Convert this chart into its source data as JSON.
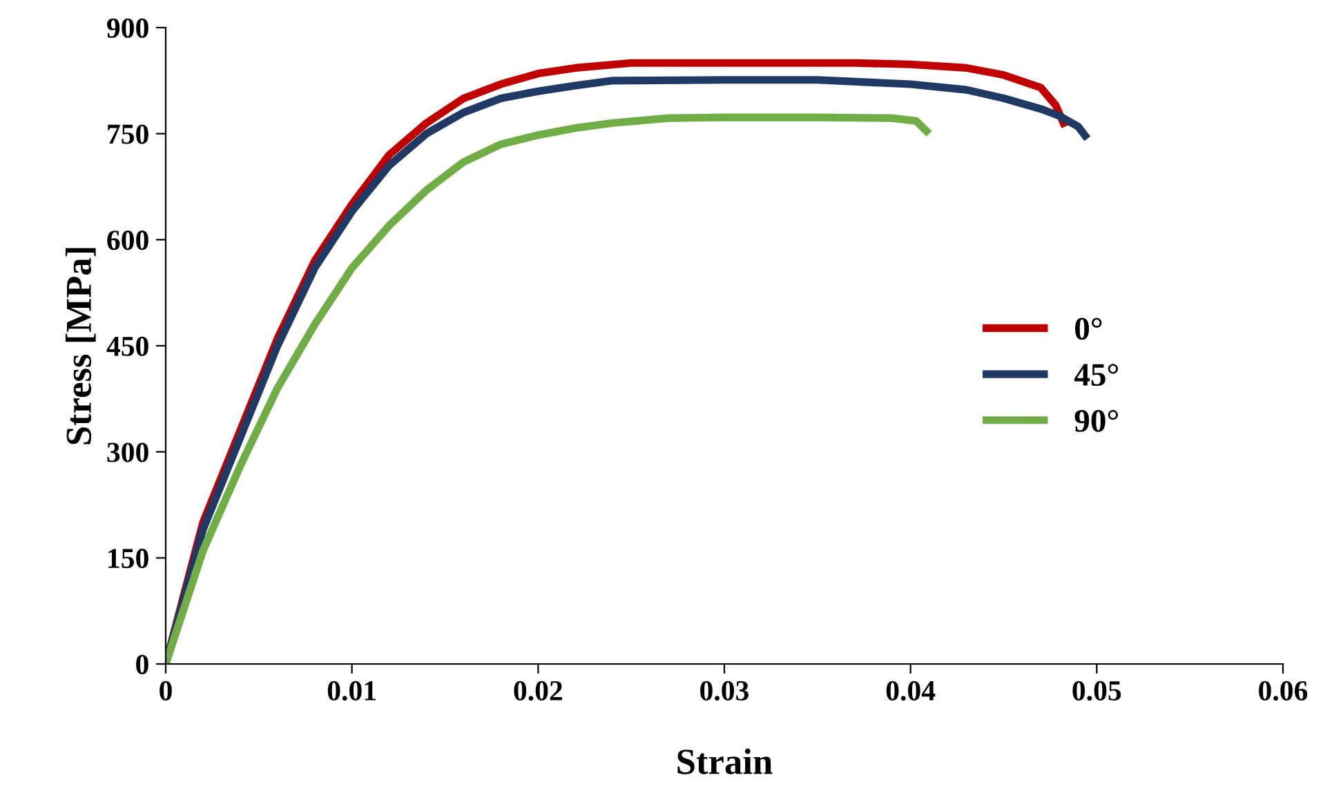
{
  "chart_data": {
    "type": "line",
    "xlabel": "Strain",
    "ylabel": "Stress [MPa]",
    "xlim": [
      0,
      0.06
    ],
    "xticks": [
      {
        "value": 0,
        "label": "0"
      },
      0.01,
      0.02,
      0.03,
      0.04,
      0.05,
      0.06
    ],
    "ylim": [
      0,
      900
    ],
    "yticks": [
      0,
      150,
      300,
      450,
      600,
      750,
      900
    ],
    "grid": false,
    "legend": "right",
    "marker": "none",
    "line_style": "solid",
    "series": [
      {
        "name": "0°",
        "color": "#c00000",
        "x": [
          0,
          0.002,
          0.004,
          0.006,
          0.008,
          0.01,
          0.012,
          0.014,
          0.016,
          0.018,
          0.02,
          0.022,
          0.025,
          0.03,
          0.037,
          0.04,
          0.043,
          0.045,
          0.047,
          0.0478,
          0.0483
        ],
        "values": [
          0,
          200,
          330,
          460,
          570,
          650,
          720,
          765,
          800,
          820,
          835,
          843,
          850,
          850,
          850,
          848,
          843,
          833,
          815,
          790,
          760
        ]
      },
      {
        "name": "45°",
        "color": "#1f3864",
        "x": [
          0,
          0.002,
          0.004,
          0.006,
          0.008,
          0.01,
          0.012,
          0.014,
          0.016,
          0.018,
          0.02,
          0.022,
          0.024,
          0.03,
          0.035,
          0.04,
          0.043,
          0.045,
          0.047,
          0.048,
          0.049,
          0.0495
        ],
        "values": [
          0,
          190,
          320,
          450,
          560,
          640,
          705,
          750,
          780,
          800,
          810,
          818,
          825,
          826,
          826,
          820,
          812,
          800,
          785,
          775,
          760,
          743
        ]
      },
      {
        "name": "90°",
        "color": "#70ad47",
        "x": [
          0,
          0.002,
          0.004,
          0.006,
          0.008,
          0.01,
          0.012,
          0.014,
          0.016,
          0.018,
          0.02,
          0.022,
          0.024,
          0.027,
          0.03,
          0.035,
          0.039,
          0.0403,
          0.041
        ],
        "values": [
          0,
          160,
          280,
          390,
          480,
          560,
          620,
          670,
          710,
          735,
          748,
          758,
          765,
          772,
          773,
          773,
          772,
          768,
          750
        ]
      }
    ]
  }
}
